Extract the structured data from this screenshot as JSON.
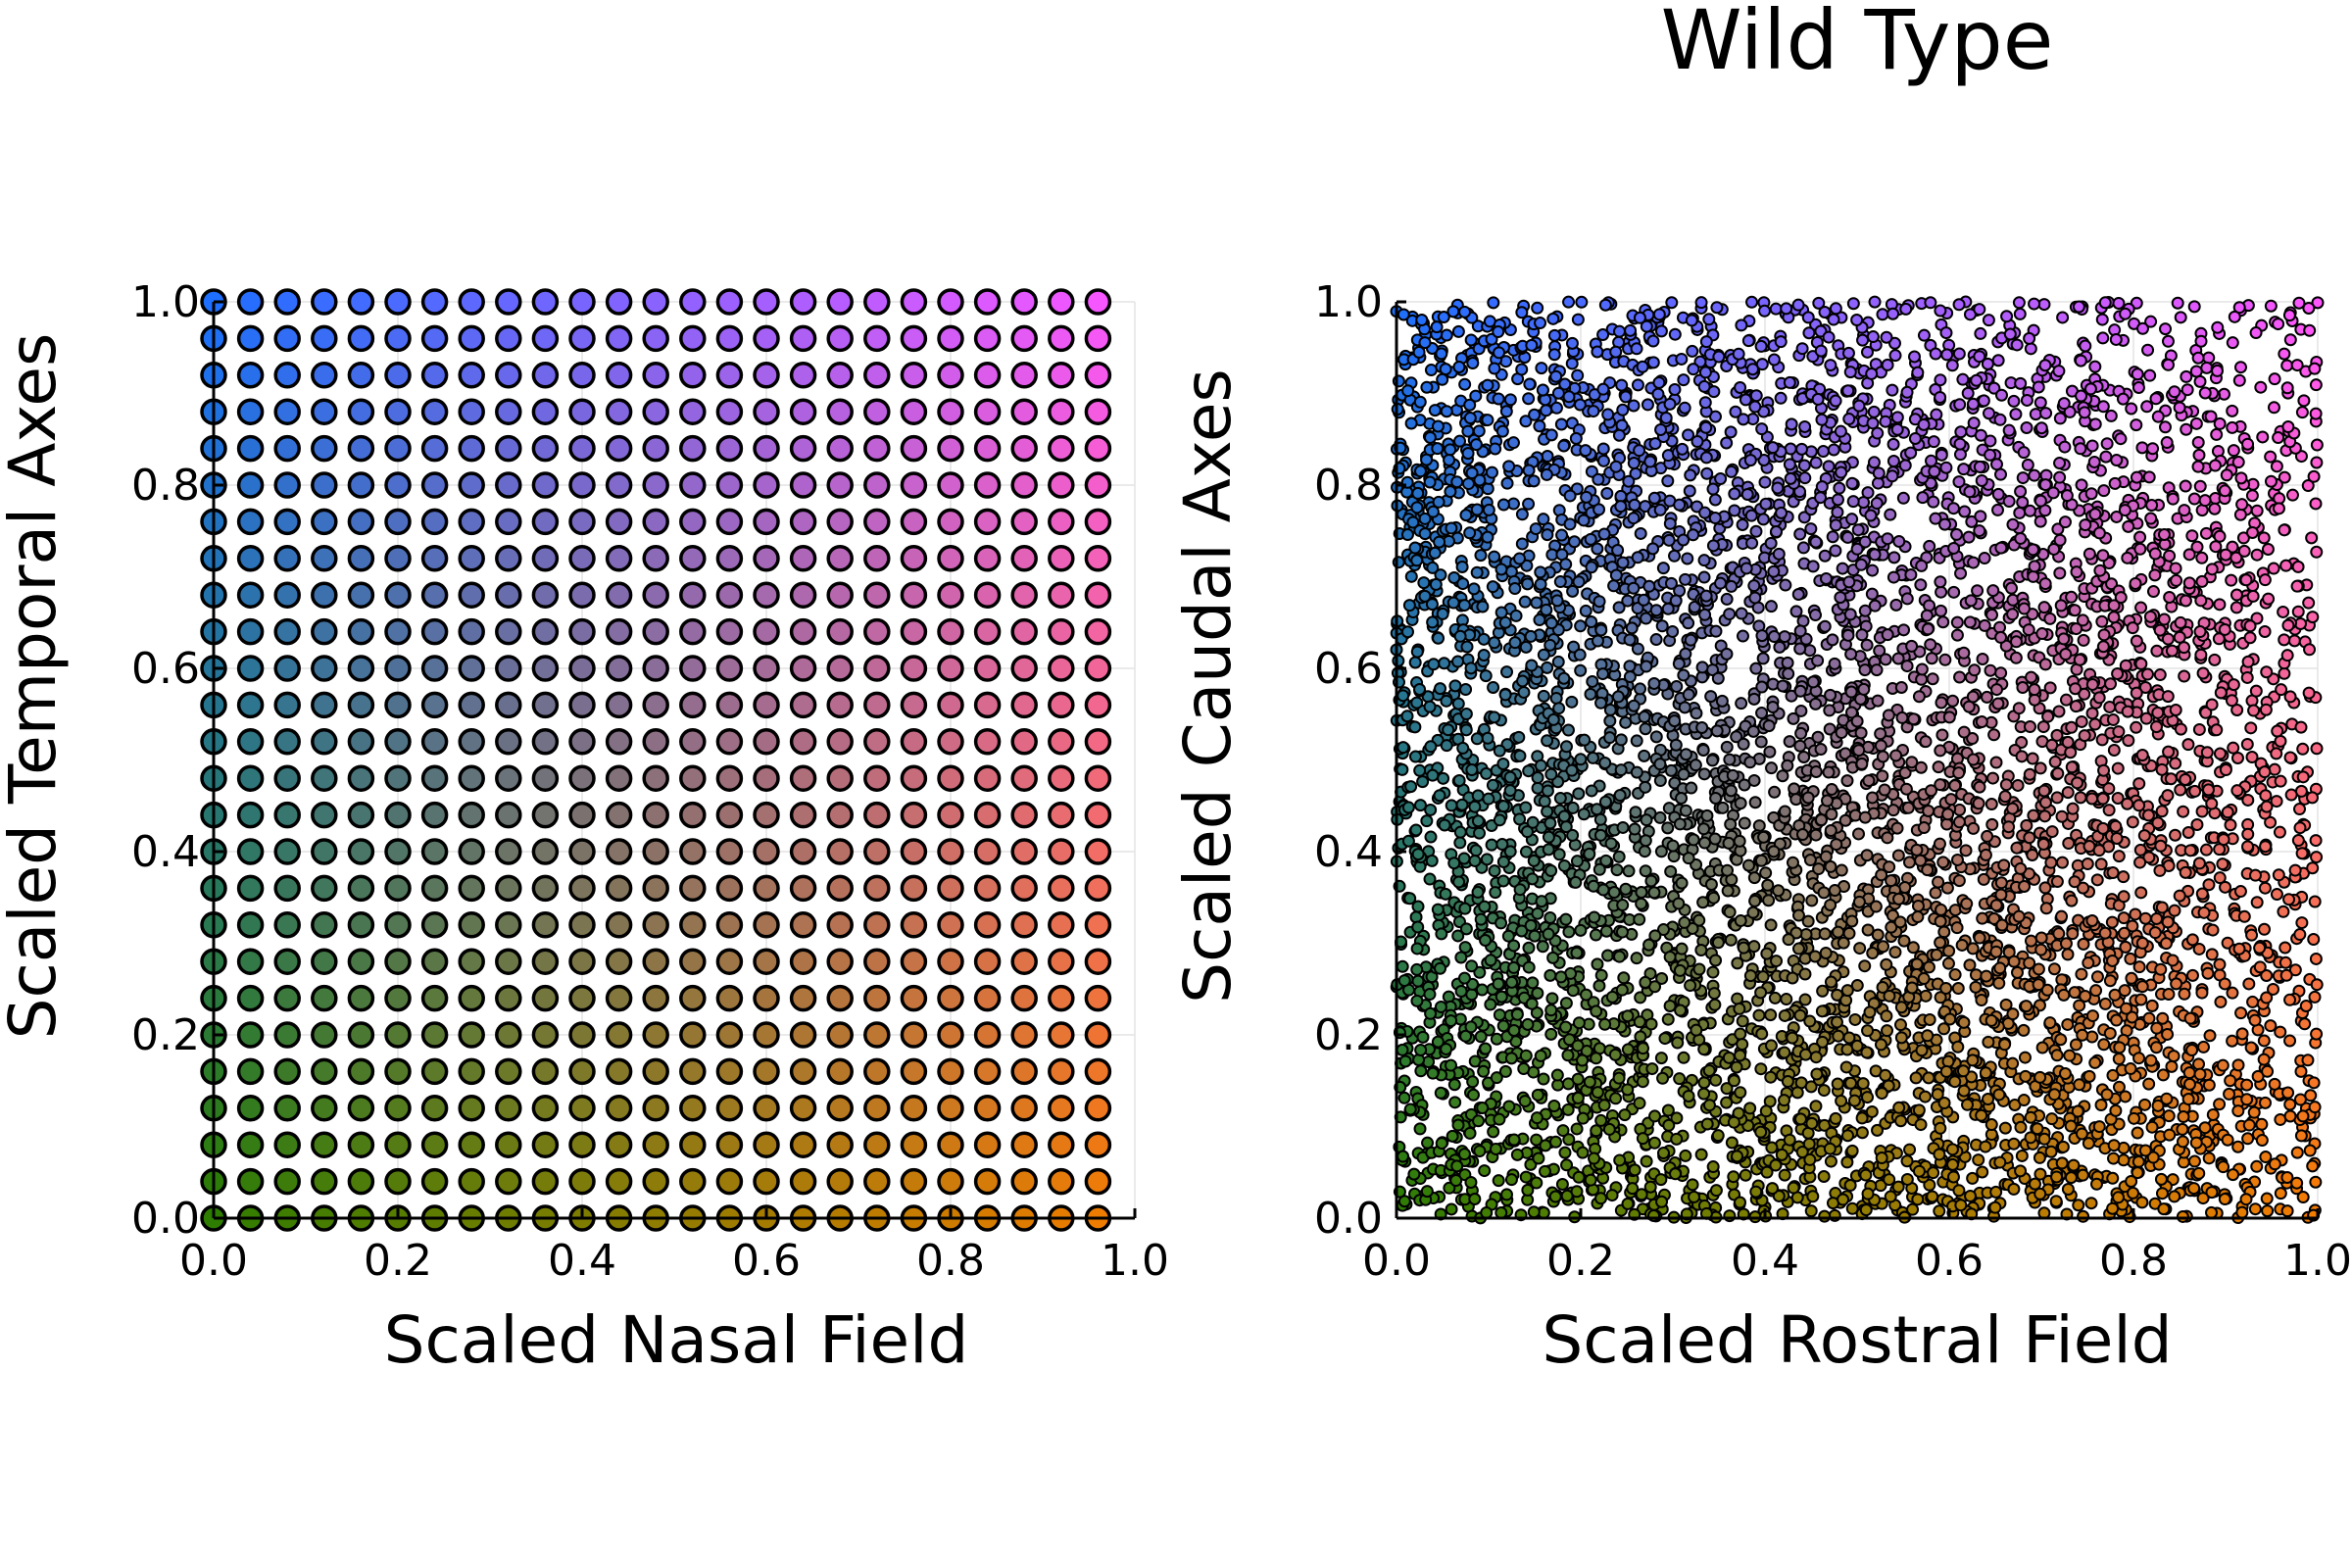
{
  "title": "Wild Type",
  "chart_data": [
    {
      "type": "scatter",
      "xlabel": "Scaled Nasal Field",
      "ylabel": "Scaled Temporal Axes",
      "xlim": [
        0,
        1
      ],
      "ylim": [
        0,
        1
      ],
      "xticks": [
        "0.0",
        "0.2",
        "0.4",
        "0.6",
        "0.8",
        "1.0"
      ],
      "yticks": [
        "0.0",
        "0.2",
        "0.4",
        "0.6",
        "0.8",
        "1.0"
      ],
      "grid": true,
      "legend": "none",
      "points": {
        "layout": "regular grid",
        "x_start": 0.0,
        "x_step": 0.04,
        "x_count": 25,
        "y_start": 0.0,
        "y_step": 0.04,
        "y_count": 26,
        "marker_edge": "#000000"
      },
      "color_encoding": {
        "origin_color": "#2e7d00",
        "x_max_color": "#f57c00",
        "y_max_color": "#1e6fff",
        "xy_max_color": "#ff55ff"
      }
    },
    {
      "type": "scatter",
      "xlabel": "Scaled Rostral Field",
      "ylabel": "Scaled Caudal Axes",
      "xlim": [
        0,
        1
      ],
      "ylim": [
        0,
        1
      ],
      "xticks": [
        "0.0",
        "0.2",
        "0.4",
        "0.6",
        "0.8",
        "1.0"
      ],
      "yticks": [
        "0.0",
        "0.2",
        "0.4",
        "0.6",
        "0.8",
        "1.0"
      ],
      "grid": true,
      "legend": "none",
      "points": {
        "layout": "dense random scatter",
        "count": 6000,
        "seed": 1234,
        "marker_edge": "#000000"
      },
      "color_encoding": {
        "origin_color": "#2e7d00",
        "x_max_color": "#f57c00",
        "y_max_color": "#1e6fff",
        "xy_max_color": "#ff55ff"
      }
    }
  ]
}
